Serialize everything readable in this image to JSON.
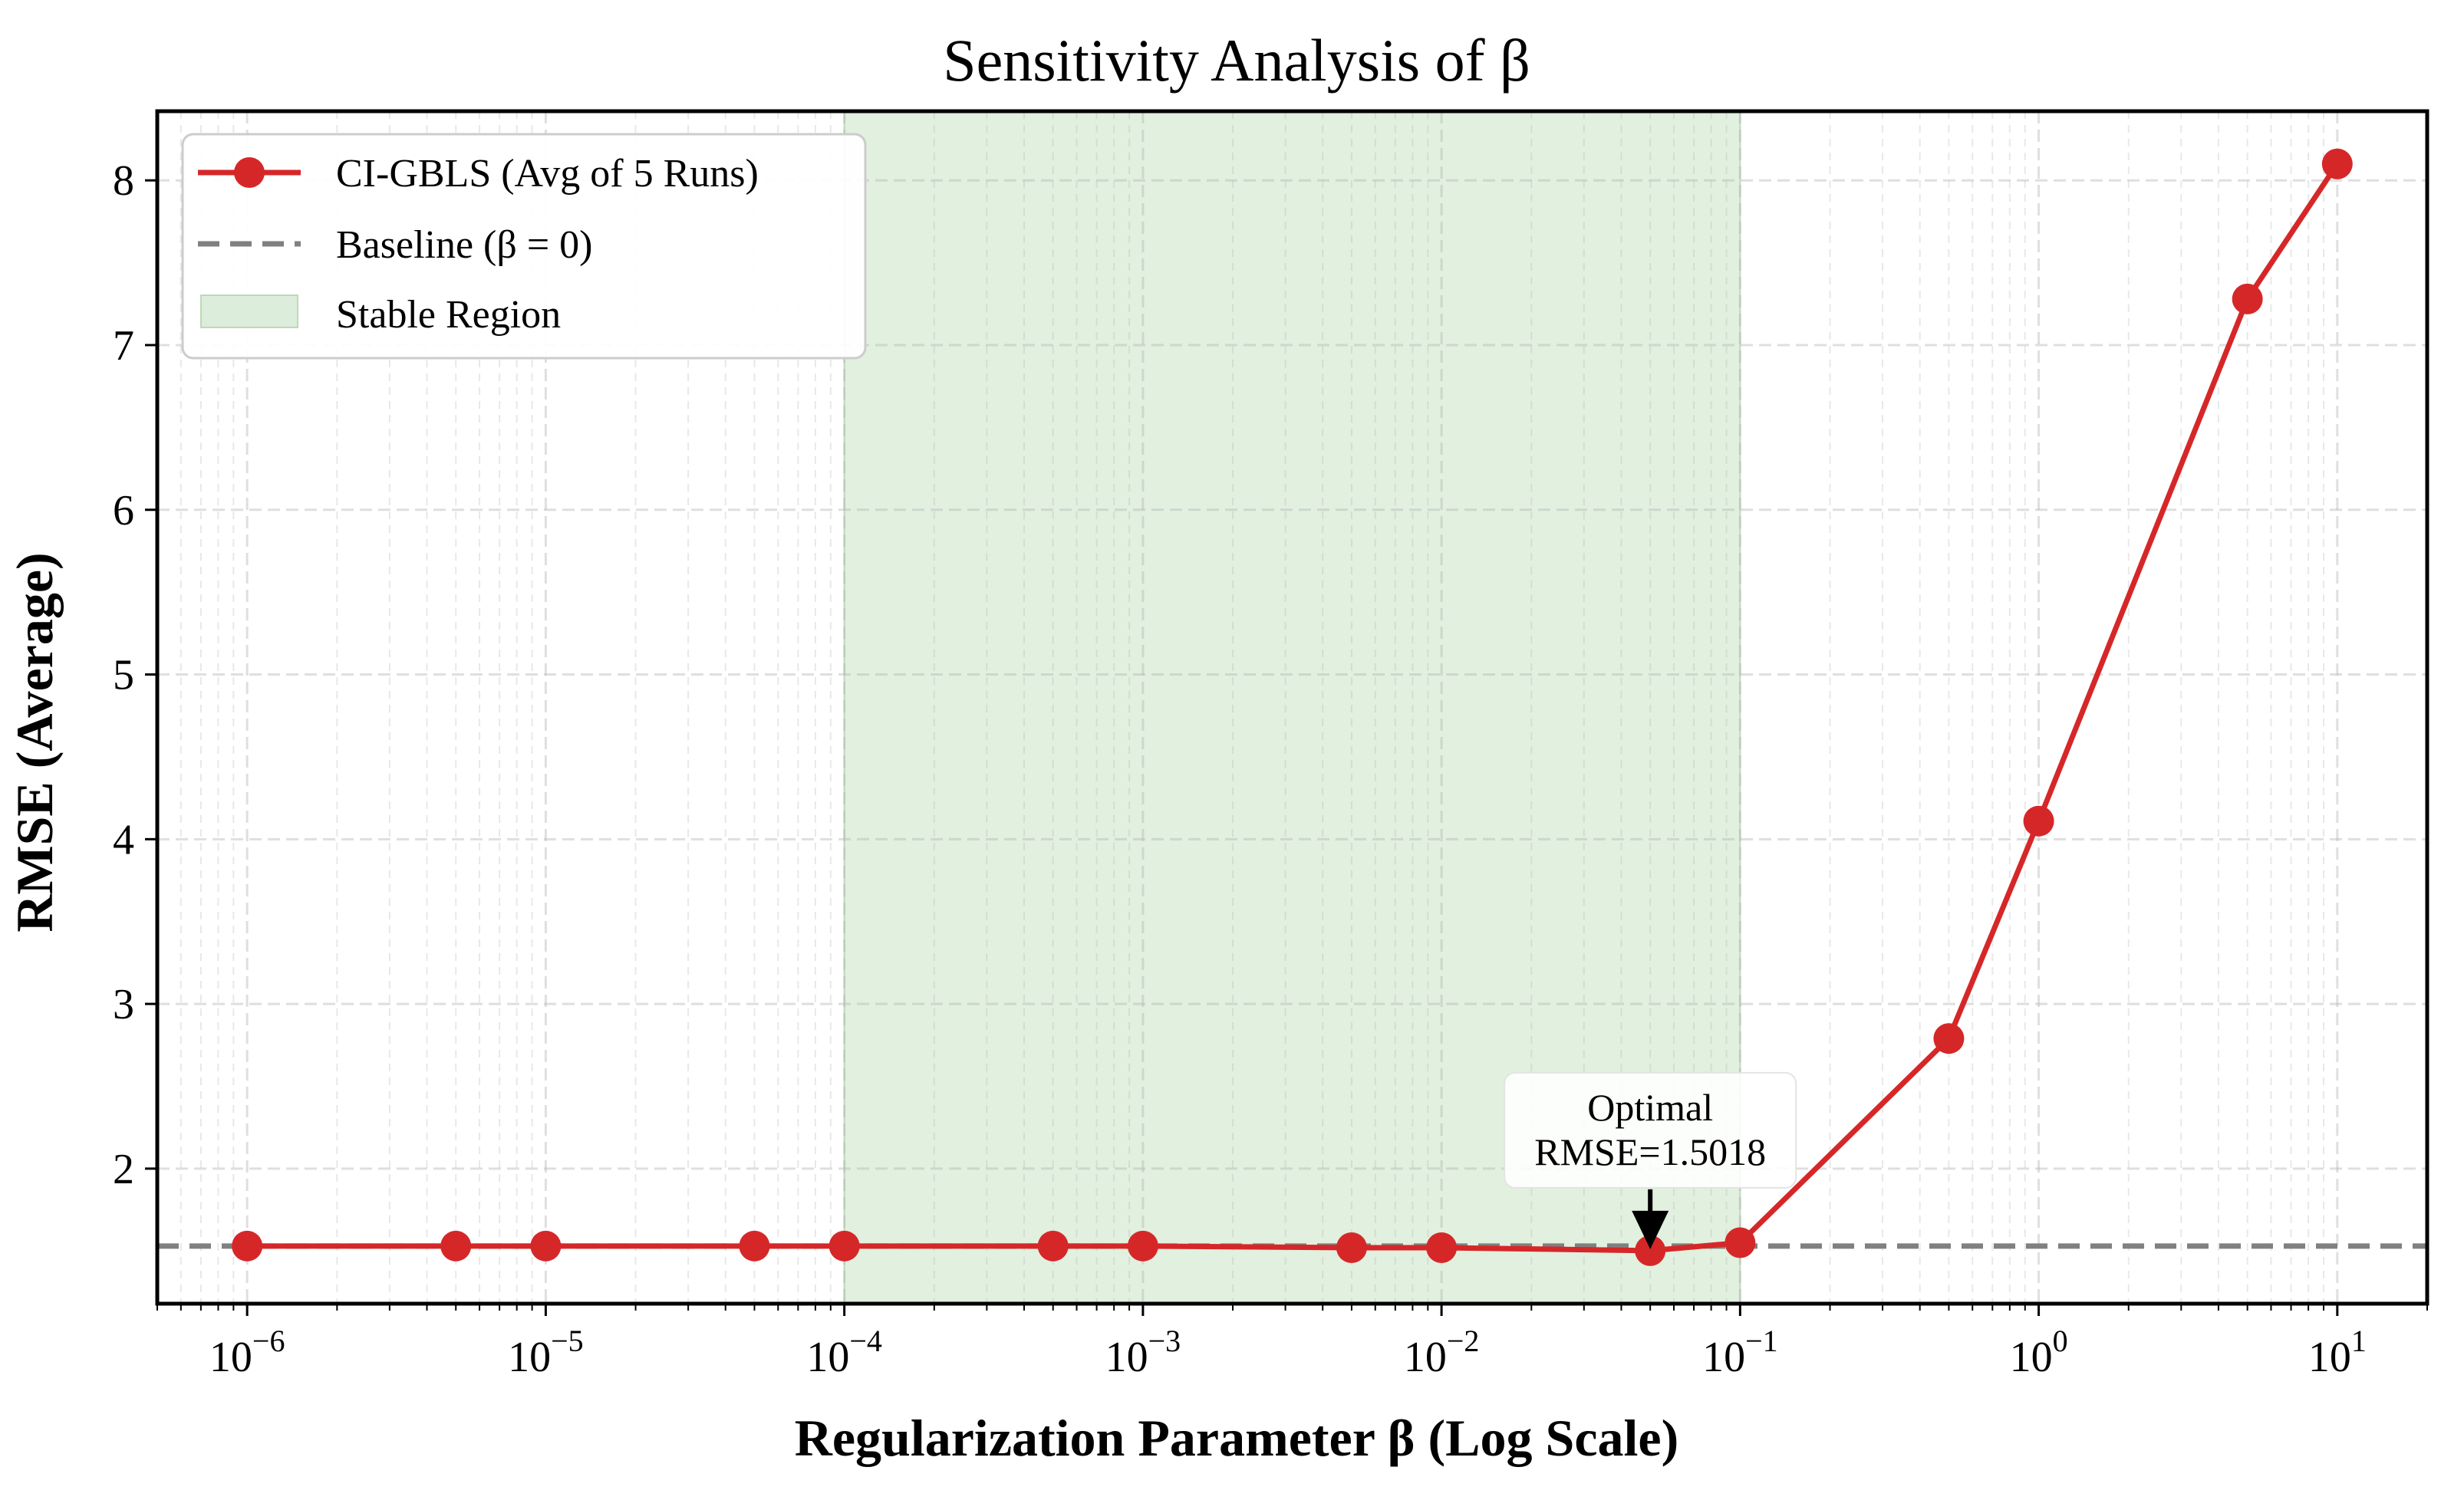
{
  "chart_data": {
    "type": "line",
    "title": "Sensitivity Analysis of β",
    "xlabel": "Regularization Parameter β (Log Scale)",
    "ylabel": "RMSE (Average)",
    "xscale": "log",
    "xlim": [
      5e-07,
      20
    ],
    "ylim": [
      1.18,
      8.42
    ],
    "x_ticks": [
      {
        "value": 1e-06,
        "base": "10",
        "exp": "−6"
      },
      {
        "value": 1e-05,
        "base": "10",
        "exp": "−5"
      },
      {
        "value": 0.0001,
        "base": "10",
        "exp": "−4"
      },
      {
        "value": 0.001,
        "base": "10",
        "exp": "−3"
      },
      {
        "value": 0.01,
        "base": "10",
        "exp": "−2"
      },
      {
        "value": 0.1,
        "base": "10",
        "exp": "−1"
      },
      {
        "value": 1,
        "base": "10",
        "exp": "0"
      },
      {
        "value": 10,
        "base": "10",
        "exp": "1"
      }
    ],
    "y_ticks": [
      2,
      3,
      4,
      5,
      6,
      7,
      8
    ],
    "grid": true,
    "series": [
      {
        "name": "CI-GBLS (Avg of 5 Runs)",
        "color": "#d62728",
        "x": [
          1e-06,
          5e-06,
          1e-05,
          5e-05,
          0.0001,
          0.0005,
          0.001,
          0.005,
          0.01,
          0.05,
          0.1,
          0.5,
          1,
          5,
          10
        ],
        "y": [
          1.53,
          1.53,
          1.53,
          1.53,
          1.53,
          1.53,
          1.53,
          1.52,
          1.52,
          1.5018,
          1.55,
          2.79,
          4.11,
          7.28,
          8.1
        ]
      }
    ],
    "baseline": {
      "label": "Baseline (β = 0)",
      "value": 1.53,
      "color": "#808080"
    },
    "stable_region": {
      "label": "Stable Region",
      "x_start": 0.0001,
      "x_end": 0.1,
      "color": "#cfe6cc"
    },
    "annotation": {
      "line1": "Optimal",
      "line2": "RMSE=1.5018",
      "x": 0.05,
      "y": 1.5018
    },
    "legend": {
      "location": "top-left"
    }
  }
}
